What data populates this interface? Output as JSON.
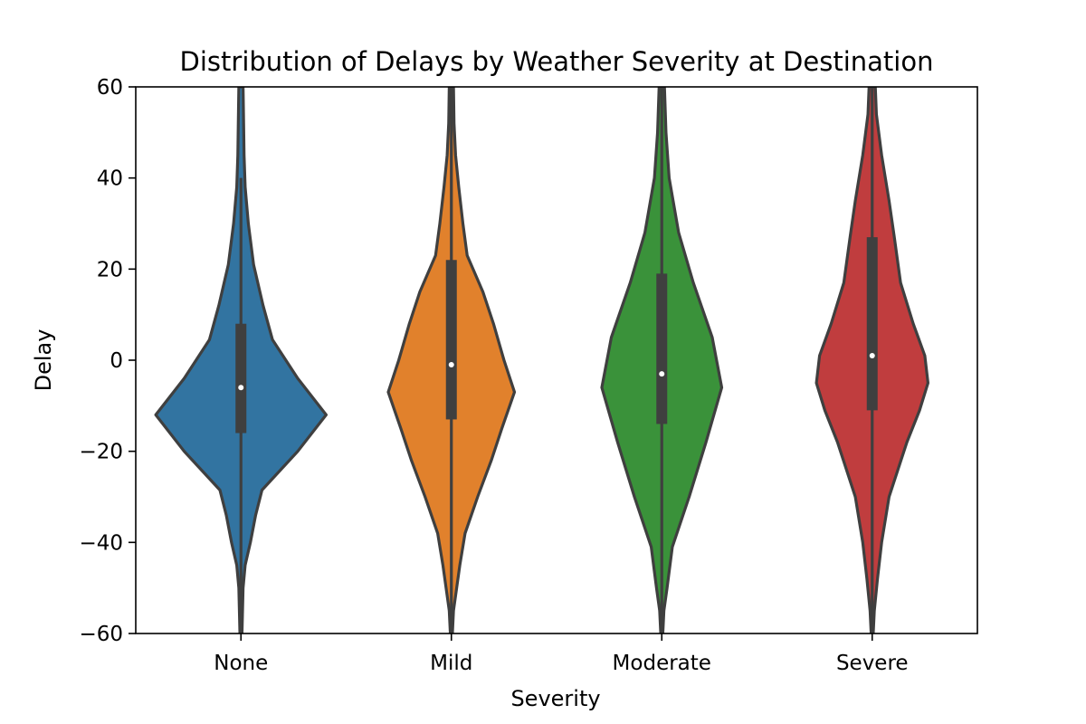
{
  "chart_data": {
    "type": "violin",
    "title": "Distribution of Delays by Weather Severity at Destination",
    "xlabel": "Severity",
    "ylabel": "Delay",
    "ylim": [
      -60,
      60
    ],
    "yticks": [
      -60,
      -40,
      -20,
      0,
      20,
      40,
      60
    ],
    "ytick_labels": [
      "−60",
      "−40",
      "−20",
      "0",
      "20",
      "40",
      "60"
    ],
    "categories": [
      "None",
      "Mild",
      "Moderate",
      "Severe"
    ],
    "grid": false,
    "legend": "none",
    "colors": [
      "#3274a1",
      "#e1812c",
      "#3a923a",
      "#c03d3e"
    ],
    "outline_color": "#3f3f3f",
    "violins": [
      {
        "category": "None",
        "median": -6,
        "q1": -16,
        "q3": 8,
        "whisker_low": -60,
        "whisker_high": 40,
        "profile": [
          [
            -60,
            0.01
          ],
          [
            -50,
            0.02
          ],
          [
            -45,
            0.04
          ],
          [
            -40,
            0.09
          ],
          [
            -34,
            0.14
          ],
          [
            -28.5,
            0.2
          ],
          [
            -20,
            0.54
          ],
          [
            -12,
            0.81
          ],
          [
            -4,
            0.54
          ],
          [
            4.5,
            0.3
          ],
          [
            12,
            0.21
          ],
          [
            21,
            0.12
          ],
          [
            30,
            0.07
          ],
          [
            38,
            0.04
          ],
          [
            45,
            0.03
          ],
          [
            52,
            0.025
          ],
          [
            60,
            0.02
          ]
        ]
      },
      {
        "category": "Mild",
        "median": -1,
        "q1": -13,
        "q3": 22,
        "whisker_low": -60,
        "whisker_high": 60,
        "profile": [
          [
            -60,
            0.01
          ],
          [
            -55,
            0.02
          ],
          [
            -50,
            0.05
          ],
          [
            -45,
            0.08
          ],
          [
            -38,
            0.13
          ],
          [
            -30,
            0.25
          ],
          [
            -22,
            0.38
          ],
          [
            -15,
            0.48
          ],
          [
            -7,
            0.6
          ],
          [
            0,
            0.5
          ],
          [
            8,
            0.4
          ],
          [
            15,
            0.3
          ],
          [
            23,
            0.15
          ],
          [
            30,
            0.11
          ],
          [
            38,
            0.07
          ],
          [
            45,
            0.04
          ],
          [
            52,
            0.025
          ],
          [
            60,
            0.02
          ]
        ]
      },
      {
        "category": "Moderate",
        "median": -3,
        "q1": -14,
        "q3": 19,
        "whisker_low": -60,
        "whisker_high": 60,
        "profile": [
          [
            -60,
            0.01
          ],
          [
            -55,
            0.02
          ],
          [
            -50,
            0.05
          ],
          [
            -41,
            0.1
          ],
          [
            -30,
            0.26
          ],
          [
            -18,
            0.42
          ],
          [
            -6,
            0.57
          ],
          [
            5,
            0.48
          ],
          [
            17,
            0.3
          ],
          [
            28,
            0.16
          ],
          [
            40,
            0.07
          ],
          [
            50,
            0.04
          ],
          [
            60,
            0.025
          ]
        ]
      },
      {
        "category": "Severe",
        "median": 1,
        "q1": -11,
        "q3": 27,
        "whisker_low": -60,
        "whisker_high": 60,
        "profile": [
          [
            -60,
            0.01
          ],
          [
            -55,
            0.02
          ],
          [
            -48,
            0.05
          ],
          [
            -40,
            0.09
          ],
          [
            -30,
            0.16
          ],
          [
            -18,
            0.33
          ],
          [
            -11,
            0.45
          ],
          [
            -5,
            0.53
          ],
          [
            1,
            0.5
          ],
          [
            8,
            0.39
          ],
          [
            17,
            0.27
          ],
          [
            27,
            0.21
          ],
          [
            35,
            0.16
          ],
          [
            45,
            0.09
          ],
          [
            54,
            0.04
          ],
          [
            60,
            0.03
          ]
        ]
      }
    ]
  }
}
